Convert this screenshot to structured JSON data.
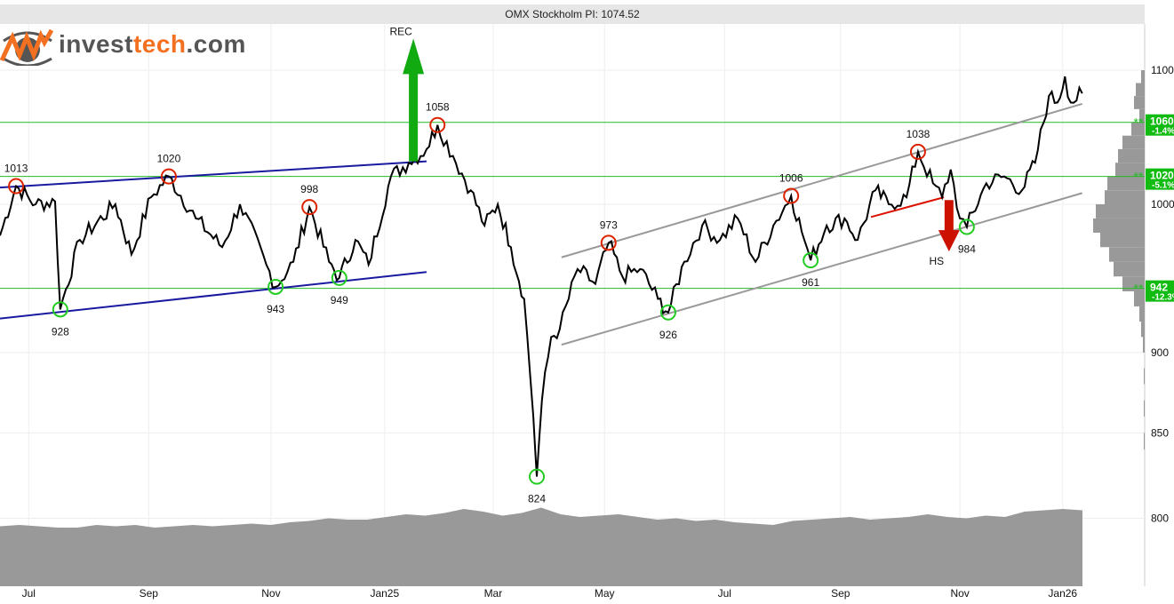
{
  "header": {
    "title": "OMX Stockholm PI: 1074.52"
  },
  "logo": {
    "part1": "invest",
    "part2": "tech",
    ".com": ".com"
  },
  "chart_data": {
    "type": "line",
    "title": "OMX Stockholm PI: 1074.52",
    "x_unit": "months since mid-Jun 2024",
    "yscale": "log",
    "ylim": [
      770,
      1140
    ],
    "y_ticks": [
      800,
      850,
      900,
      1000,
      1100
    ],
    "x_ticks": [
      {
        "label": "Jul",
        "x": 0.5
      },
      {
        "label": "Sep",
        "x": 2.59
      },
      {
        "label": "Nov",
        "x": 4.72
      },
      {
        "label": "Jan25",
        "x": 6.7
      },
      {
        "label": "Mar",
        "x": 8.59
      },
      {
        "label": "May",
        "x": 10.53
      },
      {
        "label": "Jul",
        "x": 12.62
      },
      {
        "label": "Sep",
        "x": 14.64
      },
      {
        "label": "Nov",
        "x": 16.72
      },
      {
        "label": "Jan26",
        "x": 18.51
      }
    ],
    "series": [
      {
        "name": "OMX Stockholm PI",
        "points": [
          [
            0,
            978
          ],
          [
            0.28,
            1013
          ],
          [
            0.62,
            1000
          ],
          [
            0.96,
            1002
          ],
          [
            1.05,
            928
          ],
          [
            1.39,
            975
          ],
          [
            2.01,
            1000
          ],
          [
            2.29,
            965
          ],
          [
            2.63,
            1005
          ],
          [
            2.94,
            1020
          ],
          [
            3.41,
            990
          ],
          [
            3.87,
            970
          ],
          [
            4.18,
            1000
          ],
          [
            4.64,
            958
          ],
          [
            4.8,
            943
          ],
          [
            5.11,
            960
          ],
          [
            5.39,
            998
          ],
          [
            5.73,
            960
          ],
          [
            5.91,
            949
          ],
          [
            6.19,
            975
          ],
          [
            6.42,
            958
          ],
          [
            6.81,
            1020
          ],
          [
            7.12,
            1030
          ],
          [
            7.43,
            1040
          ],
          [
            7.62,
            1058
          ],
          [
            7.89,
            1035
          ],
          [
            8.2,
            1010
          ],
          [
            8.44,
            985
          ],
          [
            8.67,
            1000
          ],
          [
            8.9,
            970
          ],
          [
            9.13,
            935
          ],
          [
            9.29,
            860
          ],
          [
            9.35,
            824
          ],
          [
            9.44,
            870
          ],
          [
            9.6,
            910
          ],
          [
            9.75,
            915
          ],
          [
            10.06,
            955
          ],
          [
            10.37,
            945
          ],
          [
            10.6,
            973
          ],
          [
            10.84,
            950
          ],
          [
            11.15,
            955
          ],
          [
            11.46,
            935
          ],
          [
            11.64,
            926
          ],
          [
            11.92,
            960
          ],
          [
            12.23,
            985
          ],
          [
            12.54,
            975
          ],
          [
            12.85,
            990
          ],
          [
            13.16,
            960
          ],
          [
            13.47,
            985
          ],
          [
            13.78,
            1006
          ],
          [
            14.01,
            975
          ],
          [
            14.12,
            961
          ],
          [
            14.4,
            985
          ],
          [
            14.71,
            990
          ],
          [
            14.94,
            975
          ],
          [
            15.25,
            1010
          ],
          [
            15.48,
            1000
          ],
          [
            15.79,
            1005
          ],
          [
            15.99,
            1038
          ],
          [
            16.25,
            1015
          ],
          [
            16.41,
            1005
          ],
          [
            16.56,
            1025
          ],
          [
            16.72,
            990
          ],
          [
            16.84,
            984
          ],
          [
            17.18,
            1015
          ],
          [
            17.49,
            1020
          ],
          [
            17.8,
            1010
          ],
          [
            18.03,
            1030
          ],
          [
            18.27,
            1080
          ],
          [
            18.42,
            1075
          ],
          [
            18.55,
            1095
          ],
          [
            18.65,
            1075
          ],
          [
            18.85,
            1082
          ]
        ]
      }
    ],
    "pivots": [
      {
        "x": 0.28,
        "v": 1013,
        "type": "top",
        "label": "1013"
      },
      {
        "x": 1.05,
        "v": 928,
        "type": "bottom",
        "label": "928"
      },
      {
        "x": 2.94,
        "v": 1020,
        "type": "top",
        "label": "1020"
      },
      {
        "x": 4.8,
        "v": 943,
        "type": "bottom",
        "label": "943"
      },
      {
        "x": 5.39,
        "v": 998,
        "type": "top",
        "label": "998"
      },
      {
        "x": 5.91,
        "v": 949,
        "type": "bottom",
        "label": "949"
      },
      {
        "x": 7.62,
        "v": 1058,
        "type": "top",
        "label": "1058"
      },
      {
        "x": 9.35,
        "v": 824,
        "type": "bottom",
        "label": "824"
      },
      {
        "x": 10.6,
        "v": 973,
        "type": "top",
        "label": "973"
      },
      {
        "x": 11.64,
        "v": 926,
        "type": "bottom",
        "label": "926"
      },
      {
        "x": 13.78,
        "v": 1006,
        "type": "top",
        "label": "1006"
      },
      {
        "x": 14.12,
        "v": 961,
        "type": "bottom",
        "label": "961"
      },
      {
        "x": 15.99,
        "v": 1038,
        "type": "top",
        "label": "1038"
      },
      {
        "x": 16.84,
        "v": 984,
        "type": "bottom",
        "label": "984"
      }
    ],
    "trendlines": [
      {
        "color": "#1a1aa0",
        "from": [
          0,
          1012
        ],
        "to": [
          7.43,
          1031
        ]
      },
      {
        "color": "#1a1aa0",
        "from": [
          0,
          922
        ],
        "to": [
          7.43,
          953
        ]
      },
      {
        "color": "#999999",
        "from": [
          9.78,
          963
        ],
        "to": [
          18.85,
          1074
        ]
      },
      {
        "color": "#999999",
        "from": [
          9.78,
          905
        ],
        "to": [
          18.85,
          1008
        ]
      },
      {
        "color": "#dd1100",
        "from": [
          15.17,
          991
        ],
        "to": [
          16.44,
          1005
        ]
      }
    ],
    "support_resistance": [
      {
        "value": 1060,
        "label": "1060",
        "pct": "-1.4%"
      },
      {
        "value": 1020,
        "label": "1020",
        "pct": "-5.1%"
      },
      {
        "value": 942,
        "label": "942",
        "pct": "-12.3%"
      }
    ],
    "signals": [
      {
        "label": "REC",
        "direction": "up",
        "color": "#11aa11",
        "x": 7.2,
        "from": 1031,
        "to": 1125
      },
      {
        "label": "HS",
        "direction": "down",
        "color": "#cc1100",
        "x": 16.53,
        "from": 1003,
        "to": 967
      }
    ],
    "volume": [
      0.25,
      0.3,
      0.25,
      0.2,
      0.2,
      0.3,
      0.25,
      0.3,
      0.2,
      0.25,
      0.3,
      0.25,
      0.3,
      0.35,
      0.3,
      0.4,
      0.45,
      0.55,
      0.5,
      0.5,
      0.6,
      0.7,
      0.65,
      0.75,
      0.9,
      0.8,
      0.65,
      0.75,
      0.95,
      0.7,
      0.6,
      0.65,
      0.7,
      0.6,
      0.5,
      0.55,
      0.45,
      0.5,
      0.4,
      0.35,
      0.3,
      0.45,
      0.5,
      0.55,
      0.6,
      0.5,
      0.55,
      0.6,
      0.7,
      0.6,
      0.55,
      0.65,
      0.6,
      0.8,
      0.85,
      0.9,
      0.85
    ],
    "volume_profile": [
      [
        1090,
        4
      ],
      [
        1080,
        10
      ],
      [
        1070,
        12
      ],
      [
        1060,
        6
      ],
      [
        1050,
        15
      ],
      [
        1040,
        25
      ],
      [
        1030,
        30
      ],
      [
        1020,
        33
      ],
      [
        1010,
        42
      ],
      [
        1000,
        45
      ],
      [
        990,
        55
      ],
      [
        980,
        58
      ],
      [
        970,
        50
      ],
      [
        960,
        40
      ],
      [
        950,
        35
      ],
      [
        940,
        25
      ],
      [
        930,
        12
      ],
      [
        920,
        6
      ],
      [
        910,
        4
      ],
      [
        900,
        2
      ],
      [
        880,
        1
      ],
      [
        860,
        1
      ],
      [
        840,
        1
      ]
    ],
    "colors": {
      "price": "#000000",
      "support": "#22bb22",
      "volume": "#999999",
      "top": "#dd2200",
      "bottom": "#22cc22"
    }
  }
}
